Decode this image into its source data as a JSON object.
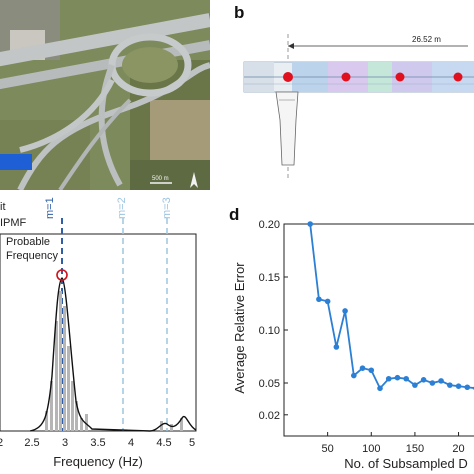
{
  "panel_a": {
    "scale_label": "500 m",
    "colors": {
      "road": "#bfc3c4",
      "vegetation": "#6f7a4a",
      "field": "#a99a74",
      "bridge_marker": "#1f5fd6"
    }
  },
  "panel_b": {
    "letter": "b",
    "dimension_label": "26.52 m",
    "colors": {
      "sensor": "#e0101e",
      "deck_blue": "#9fc0e6",
      "deck_green": "#bfe8d8"
    }
  },
  "panel_c": {
    "legend": [
      "it",
      "IPMF",
      "Probable",
      "Frequency"
    ],
    "mode_labels": [
      "m=1",
      "m=2",
      "m=3"
    ],
    "xlabel": "Frequency (Hz)",
    "xticks": [
      "2",
      "2.5",
      "3",
      "3.5",
      "4",
      "4.5",
      "5"
    ],
    "colors": {
      "mode_solid": "#2f5fa8",
      "mode_dashed": "#9ec5e0",
      "pdf": "#111111",
      "bars": "#b5b5b5",
      "marker": "#d0101a"
    }
  },
  "panel_d": {
    "letter": "d",
    "chart_data": {
      "type": "line",
      "xlabel": "No. of Subsampled D",
      "ylabel": "Average Relative Error",
      "xlim": [
        0,
        220
      ],
      "ylim": [
        0.0,
        0.2
      ],
      "xticks": [
        "50",
        "100",
        "150",
        "20"
      ],
      "yticks": [
        "0.20",
        "0.15",
        "0.10",
        "0.05",
        "0.02"
      ],
      "series": [
        {
          "x": [
            30,
            40,
            50,
            60,
            70,
            80,
            90,
            100,
            110,
            120,
            130,
            140,
            150,
            160,
            170,
            180,
            190,
            200,
            210,
            220
          ],
          "values": [
            0.2,
            0.129,
            0.127,
            0.084,
            0.118,
            0.057,
            0.064,
            0.062,
            0.045,
            0.054,
            0.055,
            0.054,
            0.048,
            0.053,
            0.05,
            0.052,
            0.048,
            0.047,
            0.046,
            0.045
          ]
        }
      ],
      "color": "#2b7fd4",
      "grid": false
    }
  }
}
